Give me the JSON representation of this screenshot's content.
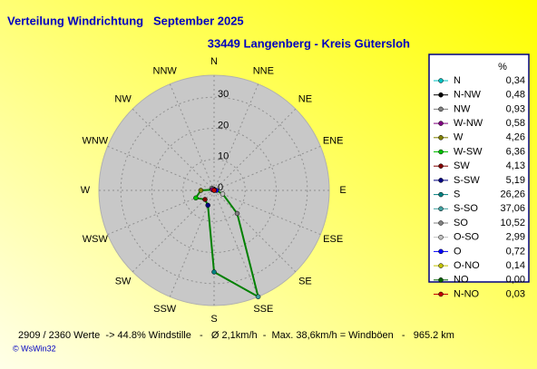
{
  "chart_data": {
    "type": "radar",
    "title": "Verteilung Windrichtung   September 2025",
    "subtitle": "33449 Langenberg - Kreis Gütersloh",
    "axis_labels": [
      "N",
      "NNE",
      "NE",
      "ENE",
      "E",
      "ESE",
      "SE",
      "SSE",
      "S",
      "SSW",
      "SW",
      "WSW",
      "W",
      "WNW",
      "NW",
      "NNW"
    ],
    "legend_header": "%",
    "categories": [
      "N",
      "N-NW",
      "NW",
      "W-NW",
      "W",
      "W-SW",
      "SW",
      "S-SW",
      "S",
      "S-SO",
      "SO",
      "O-SO",
      "O",
      "O-NO",
      "NO",
      "N-NO"
    ],
    "values": [
      0.34,
      0.48,
      0.93,
      0.58,
      4.26,
      6.36,
      4.13,
      5.19,
      26.26,
      37.06,
      10.52,
      2.99,
      0.72,
      0.14,
      0.0,
      0.03
    ],
    "value_labels": [
      "0,34",
      "0,48",
      "0,93",
      "0,58",
      "4,26",
      "6,36",
      "4,13",
      "5,19",
      "26,26",
      "37,06",
      "10,52",
      "2,99",
      "0,72",
      "0,14",
      "0,00",
      "0,03"
    ],
    "colors": [
      "#00c0c0",
      "#000000",
      "#808080",
      "#800080",
      "#808000",
      "#00c000",
      "#800000",
      "#000080",
      "#008080",
      "#40a0a0",
      "#808080",
      "#c0c0c0",
      "#0000ff",
      "#c0c000",
      "#006000",
      "#c00000"
    ],
    "line_color": "#008000",
    "rlim": [
      0,
      37.06
    ],
    "rticks": [
      0,
      10,
      20,
      30
    ],
    "footer": "2909 / 2360 Werte  -> 44.8% Windstille   -   Ø 2,1km/h  -  Max. 38,6km/h = Windböen   -   965.2 km",
    "credit": "© WsWin32"
  }
}
